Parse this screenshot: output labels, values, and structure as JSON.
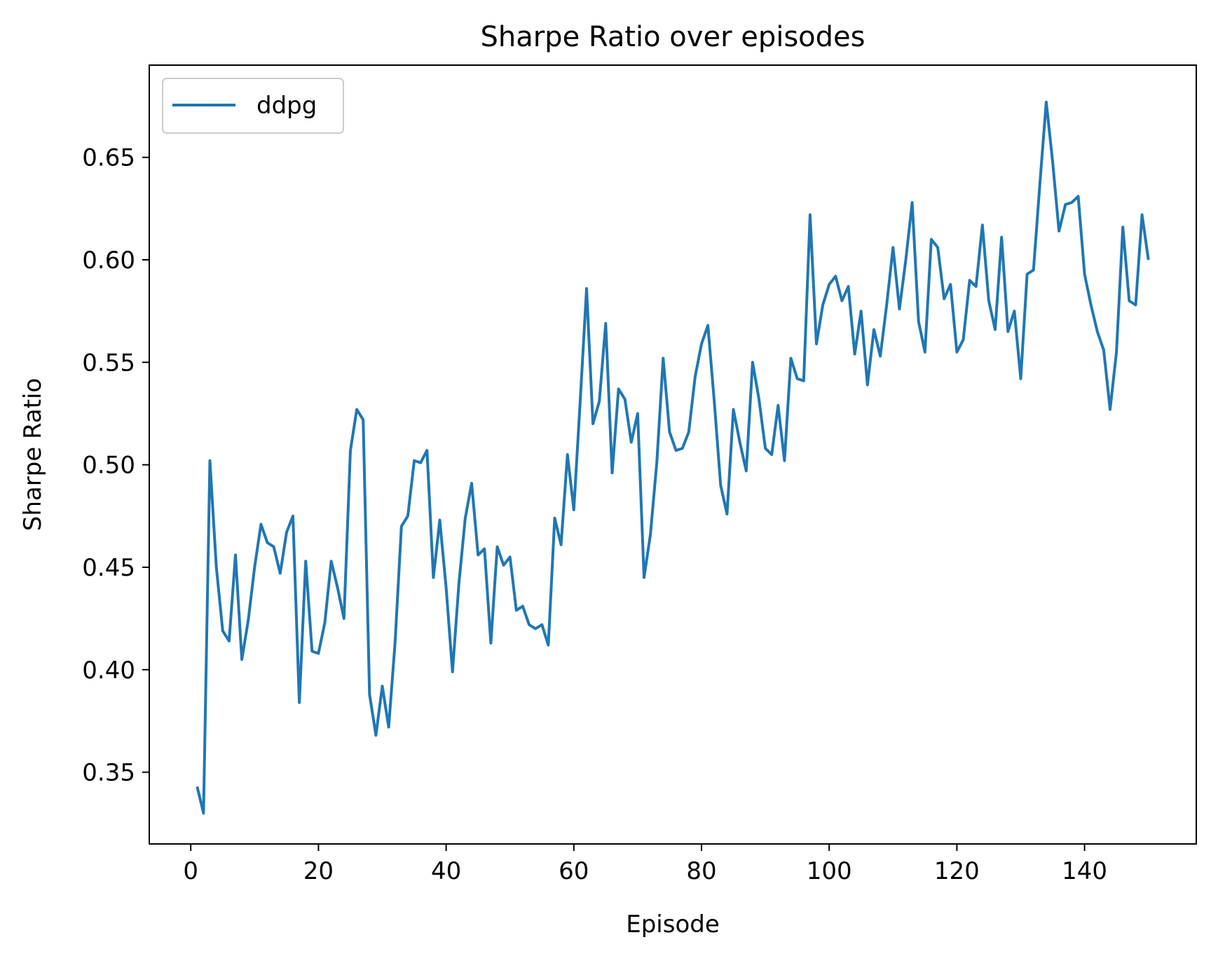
{
  "chart_data": {
    "type": "line",
    "title": "Sharpe Ratio over episodes",
    "xlabel": "Episode",
    "ylabel": "Sharpe Ratio",
    "xlim": [
      -6.5,
      157.5
    ],
    "ylim": [
      0.315,
      0.695
    ],
    "xticks": [
      0,
      20,
      40,
      60,
      80,
      100,
      120,
      140
    ],
    "yticks": [
      0.35,
      0.4,
      0.45,
      0.5,
      0.55,
      0.6,
      0.65
    ],
    "ytick_labels": [
      "0.35",
      "0.40",
      "0.45",
      "0.50",
      "0.55",
      "0.60",
      "0.65"
    ],
    "xtick_labels": [
      "0",
      "20",
      "40",
      "60",
      "80",
      "100",
      "120",
      "140"
    ],
    "grid": false,
    "legend_position": "top-left",
    "series": [
      {
        "name": "ddpg",
        "color": "#1f77b4",
        "x": [
          1,
          2,
          3,
          4,
          5,
          6,
          7,
          8,
          9,
          10,
          11,
          12,
          13,
          14,
          15,
          16,
          17,
          18,
          19,
          20,
          21,
          22,
          23,
          24,
          25,
          26,
          27,
          28,
          29,
          30,
          31,
          32,
          33,
          34,
          35,
          36,
          37,
          38,
          39,
          40,
          41,
          42,
          43,
          44,
          45,
          46,
          47,
          48,
          49,
          50,
          51,
          52,
          53,
          54,
          55,
          56,
          57,
          58,
          59,
          60,
          61,
          62,
          63,
          64,
          65,
          66,
          67,
          68,
          69,
          70,
          71,
          72,
          73,
          74,
          75,
          76,
          77,
          78,
          79,
          80,
          81,
          82,
          83,
          84,
          85,
          86,
          87,
          88,
          89,
          90,
          91,
          92,
          93,
          94,
          95,
          96,
          97,
          98,
          99,
          100,
          101,
          102,
          103,
          104,
          105,
          106,
          107,
          108,
          109,
          110,
          111,
          112,
          113,
          114,
          115,
          116,
          117,
          118,
          119,
          120,
          121,
          122,
          123,
          124,
          125,
          126,
          127,
          128,
          129,
          130,
          131,
          132,
          133,
          134,
          135,
          136,
          137,
          138,
          139,
          140,
          141,
          142,
          143,
          144,
          145,
          146,
          147,
          148,
          149,
          150
        ],
        "y": [
          0.343,
          0.33,
          0.502,
          0.45,
          0.419,
          0.414,
          0.456,
          0.405,
          0.424,
          0.45,
          0.471,
          0.462,
          0.46,
          0.447,
          0.467,
          0.475,
          0.384,
          0.453,
          0.409,
          0.408,
          0.423,
          0.453,
          0.44,
          0.425,
          0.507,
          0.527,
          0.522,
          0.388,
          0.368,
          0.392,
          0.372,
          0.413,
          0.47,
          0.475,
          0.502,
          0.501,
          0.507,
          0.445,
          0.473,
          0.44,
          0.399,
          0.442,
          0.474,
          0.491,
          0.456,
          0.459,
          0.413,
          0.46,
          0.451,
          0.455,
          0.429,
          0.431,
          0.422,
          0.42,
          0.422,
          0.412,
          0.474,
          0.461,
          0.505,
          0.478,
          0.531,
          0.586,
          0.52,
          0.531,
          0.569,
          0.496,
          0.537,
          0.532,
          0.511,
          0.525,
          0.445,
          0.466,
          0.501,
          0.552,
          0.516,
          0.507,
          0.508,
          0.516,
          0.543,
          0.559,
          0.568,
          0.531,
          0.49,
          0.476,
          0.527,
          0.511,
          0.497,
          0.55,
          0.532,
          0.508,
          0.505,
          0.529,
          0.502,
          0.552,
          0.542,
          0.541,
          0.622,
          0.559,
          0.578,
          0.588,
          0.592,
          0.58,
          0.587,
          0.554,
          0.575,
          0.539,
          0.566,
          0.553,
          0.578,
          0.606,
          0.576,
          0.6,
          0.628,
          0.57,
          0.555,
          0.61,
          0.606,
          0.581,
          0.588,
          0.555,
          0.561,
          0.59,
          0.587,
          0.617,
          0.58,
          0.566,
          0.611,
          0.565,
          0.575,
          0.542,
          0.593,
          0.595,
          0.637,
          0.677,
          0.648,
          0.614,
          0.627,
          0.628,
          0.631,
          0.593,
          0.578,
          0.565,
          0.556,
          0.527,
          0.555,
          0.616,
          0.58,
          0.578,
          0.622,
          0.6
        ]
      }
    ]
  }
}
